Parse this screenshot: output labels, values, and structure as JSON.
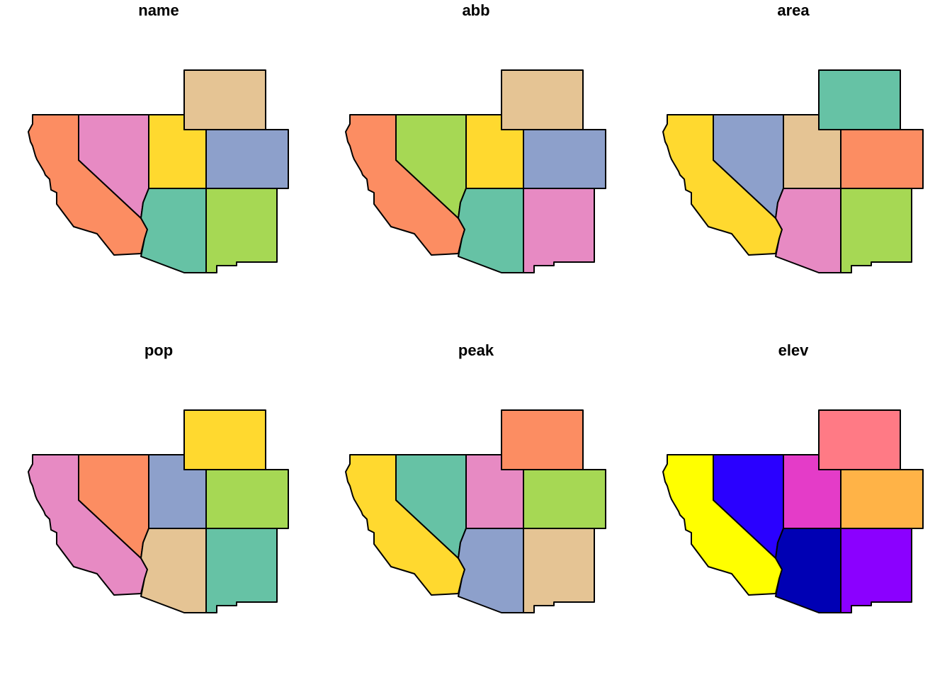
{
  "panels": [
    {
      "title": "name",
      "fills": {
        "california": "#fc8d62",
        "nevada": "#e78ac3",
        "utah": "#ffd92f",
        "wyoming": "#e5c494",
        "colorado": "#8da0cb",
        "arizona": "#66c2a5",
        "new-mexico": "#a6d854"
      }
    },
    {
      "title": "abb",
      "fills": {
        "california": "#fc8d62",
        "nevada": "#a6d854",
        "utah": "#ffd92f",
        "wyoming": "#e5c494",
        "colorado": "#8da0cb",
        "arizona": "#66c2a5",
        "new-mexico": "#e78ac3"
      }
    },
    {
      "title": "area",
      "fills": {
        "california": "#ffd92f",
        "nevada": "#8da0cb",
        "utah": "#e5c494",
        "wyoming": "#66c2a5",
        "colorado": "#fc8d62",
        "arizona": "#e78ac3",
        "new-mexico": "#a6d854"
      }
    },
    {
      "title": "pop",
      "fills": {
        "california": "#e78ac3",
        "nevada": "#fc8d62",
        "utah": "#8da0cb",
        "wyoming": "#ffd92f",
        "colorado": "#a6d854",
        "arizona": "#e5c494",
        "new-mexico": "#66c2a5"
      }
    },
    {
      "title": "peak",
      "fills": {
        "california": "#ffd92f",
        "nevada": "#66c2a5",
        "utah": "#e78ac3",
        "wyoming": "#fc8d62",
        "colorado": "#a6d854",
        "arizona": "#8da0cb",
        "new-mexico": "#e5c494"
      }
    },
    {
      "title": "elev",
      "fills": {
        "california": "#ffff00",
        "nevada": "#2a00ff",
        "utah": "#e43cc8",
        "wyoming": "#ff7a85",
        "colorado": "#ffb347",
        "arizona": "#0000b4",
        "new-mexico": "#8b00ff"
      }
    }
  ]
}
